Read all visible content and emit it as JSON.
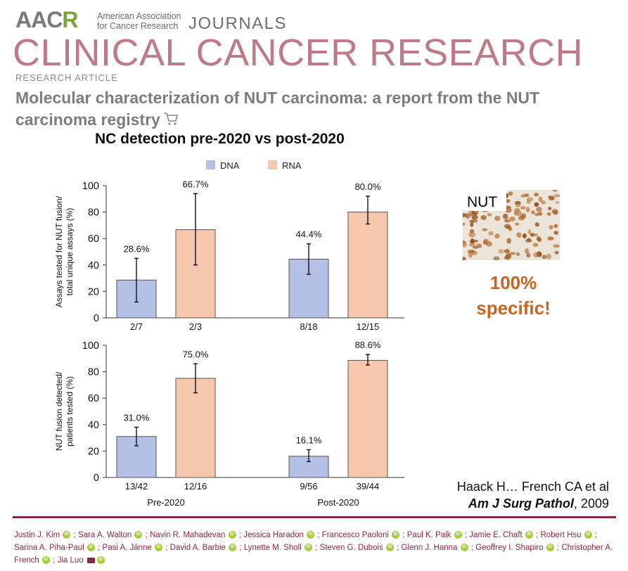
{
  "header": {
    "logo_text_a": "AAC",
    "logo_text_r": "R",
    "association": "American Association for Cancer Research",
    "journals": "JOURNALS",
    "journal_title": "CLINICAL CANCER RESEARCH",
    "article_type": "RESEARCH ARTICLE",
    "article_title": "Molecular characterization of NUT carcinoma: a report from the NUT carcinoma registry"
  },
  "chart_data": {
    "type": "bar",
    "title": "NC detection pre-2020 vs post-2020",
    "legend": [
      "DNA",
      "RNA"
    ],
    "colors": {
      "DNA": "#b4c0e6",
      "RNA": "#f6c6ad"
    },
    "groups": [
      "Pre-2020",
      "Post-2020"
    ],
    "panels": [
      {
        "ylabel_lines": [
          "Assays tested for NUT fusion/",
          "total unique assays (%)"
        ],
        "ylim": [
          0,
          100
        ],
        "yticks": [
          0,
          20,
          40,
          60,
          80,
          100
        ],
        "bars": [
          {
            "group": "Pre-2020",
            "series": "DNA",
            "value": 28.6,
            "err_low": 12,
            "err_high": 45,
            "label": "28.6%",
            "count": "2/7"
          },
          {
            "group": "Pre-2020",
            "series": "RNA",
            "value": 66.7,
            "err_low": 40,
            "err_high": 94,
            "label": "66.7%",
            "count": "2/3"
          },
          {
            "group": "Post-2020",
            "series": "DNA",
            "value": 44.4,
            "err_low": 33,
            "err_high": 56,
            "label": "44.4%",
            "count": "8/18"
          },
          {
            "group": "Post-2020",
            "series": "RNA",
            "value": 80.0,
            "err_low": 71,
            "err_high": 92,
            "label": "80.0%",
            "count": "12/15"
          }
        ]
      },
      {
        "ylabel_lines": [
          "NUT fusion detected/",
          "patients tested (%)"
        ],
        "ylim": [
          0,
          100
        ],
        "yticks": [
          0,
          20,
          40,
          60,
          80,
          100
        ],
        "bars": [
          {
            "group": "Pre-2020",
            "series": "DNA",
            "value": 31.0,
            "err_low": 24,
            "err_high": 38,
            "label": "31.0%",
            "count": "13/42"
          },
          {
            "group": "Pre-2020",
            "series": "RNA",
            "value": 75.0,
            "err_low": 64,
            "err_high": 86,
            "label": "75.0%",
            "count": "12/16"
          },
          {
            "group": "Post-2020",
            "series": "DNA",
            "value": 16.1,
            "err_low": 12,
            "err_high": 21,
            "label": "16.1%",
            "count": "9/56"
          },
          {
            "group": "Post-2020",
            "series": "RNA",
            "value": 88.6,
            "err_low": 85,
            "err_high": 93,
            "label": "88.6%",
            "count": "39/44"
          }
        ]
      }
    ]
  },
  "side": {
    "nut_label": "NUT",
    "specific_line1": "100%",
    "specific_line2": "specific!"
  },
  "reference": {
    "line1": "Haack H… French CA et al",
    "journal": "Am J Surg Pathol",
    "year": ", 2009"
  },
  "authors": [
    "Justin J. Kim",
    "Sara A. Walton",
    "Navin R. Mahadevan",
    "Jessica Haradon",
    "Francesco Paoloni",
    "Paul K. Paik",
    "Jamie E. Chaft",
    "Robert Hsu",
    "Sarina A. Piha-Paul",
    "Pasi A. Jänne",
    "David A. Barbie",
    "Lynette M. Sholl",
    "Steven G. Dubois",
    "Glenn J. Hanna",
    "Geoffrey I. Shapiro",
    "Christopher A. French",
    "Jia Luo"
  ],
  "orcid_text": "iD"
}
